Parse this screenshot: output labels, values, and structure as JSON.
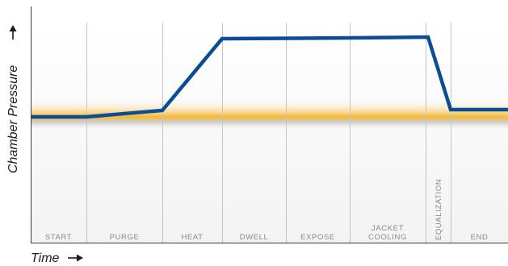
{
  "diagram": {
    "y_axis_label": "Chamber Pressure",
    "x_axis_label": "Time",
    "phases": [
      {
        "id": "start",
        "lines": [
          "START"
        ]
      },
      {
        "id": "purge",
        "lines": [
          "PURGE"
        ]
      },
      {
        "id": "heat",
        "lines": [
          "HEAT"
        ]
      },
      {
        "id": "dwell",
        "lines": [
          "DWELL"
        ]
      },
      {
        "id": "expose",
        "lines": [
          "EXPOSE"
        ]
      },
      {
        "id": "jacket-cooling",
        "lines": [
          "JACKET",
          "COOLING"
        ]
      },
      {
        "id": "equalization",
        "lines": [
          "EQUALIZATION"
        ],
        "vertical": true
      },
      {
        "id": "end",
        "lines": [
          "END"
        ]
      }
    ],
    "colors": {
      "pressure_line": "#0b4d95",
      "baseline_band": "#f5b52a",
      "baseline_shadow": "#c8c8c8",
      "phase_divider": "#c4c4c4",
      "phase_shading": "#f3f3f3",
      "axis": "#3a3a3a",
      "phase_label": "#8a8a8a"
    }
  }
}
